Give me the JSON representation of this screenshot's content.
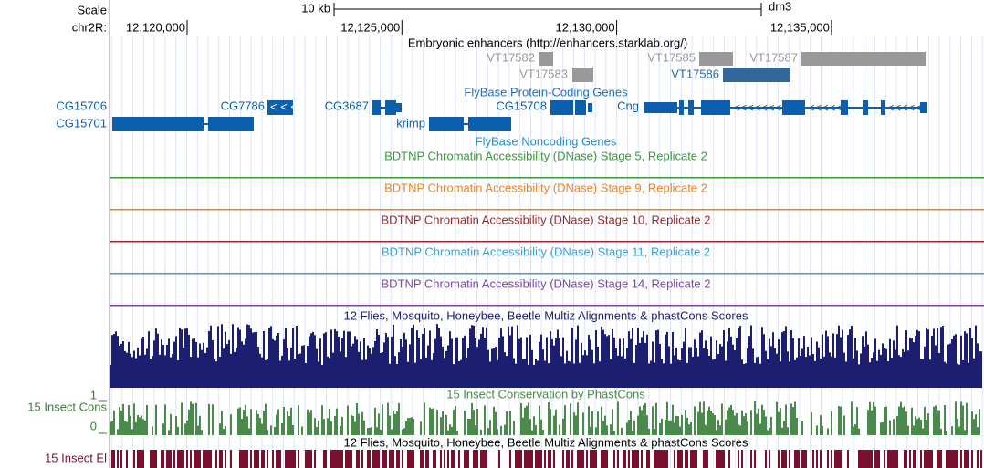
{
  "ruler": {
    "scale_label": "Scale",
    "scale_bar": "10 kb",
    "assembly": "dm3",
    "chrom_label": "chr2R:",
    "positions": [
      "12,120,000",
      "12,125,000",
      "12,130,000",
      "12,135,000"
    ]
  },
  "tracks": {
    "enhancers": {
      "title": "Embryonic enhancers (http://enhancers.starklab.org/)",
      "items": [
        "VT17582",
        "VT17583",
        "VT17585",
        "VT17586",
        "VT17587"
      ]
    },
    "genes": {
      "title": "FlyBase Protein-Coding Genes",
      "items": [
        "CG15706",
        "CG15701",
        "CG7786",
        "CG3687",
        "krimp",
        "CG15708",
        "Cng"
      ]
    },
    "noncoding": {
      "title": "FlyBase Noncoding Genes"
    },
    "dnase": [
      "BDTNP Chromatin Accessibility (DNase) Stage 5, Replicate 2",
      "BDTNP Chromatin Accessibility (DNase) Stage 9, Replicate 2",
      "BDTNP Chromatin Accessibility (DNase) Stage 10, Replicate 2",
      "BDTNP Chromatin Accessibility (DNase) Stage 11, Replicate 2",
      "BDTNP Chromatin Accessibility (DNase) Stage 14, Replicate 2"
    ],
    "multiz": {
      "title": "12 Flies, Mosquito, Honeybee, Beetle Multiz Alignments & phastCons Scores"
    },
    "cons": {
      "side_label": "15 Insect Cons",
      "title": "15 Insect Conservation by PhastCons",
      "ymax": "1",
      "ymin": "0"
    },
    "elements": {
      "side_label": "15 Insect El",
      "title": "12 Flies, Mosquito, Honeybee, Beetle Multiz Alignments & phastCons Scores"
    }
  }
}
